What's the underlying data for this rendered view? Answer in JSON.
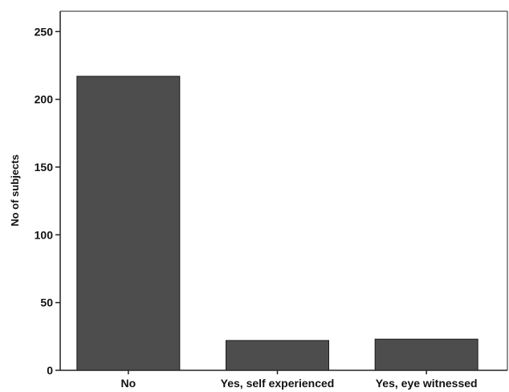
{
  "chart_data": {
    "type": "bar",
    "title": "",
    "xlabel": "",
    "ylabel": "No of subjects",
    "categories": [
      "No",
      "Yes, self experienced",
      "Yes, eye witnessed"
    ],
    "values": [
      217,
      22,
      23
    ],
    "ylim": [
      0,
      265
    ],
    "yticks": [
      0,
      50,
      100,
      150,
      200,
      250
    ],
    "grid": false,
    "legend": "none",
    "bar_color": "#4d4d4d",
    "bar_edge_color": "#1a1a1a",
    "axis_color": "#222222"
  }
}
